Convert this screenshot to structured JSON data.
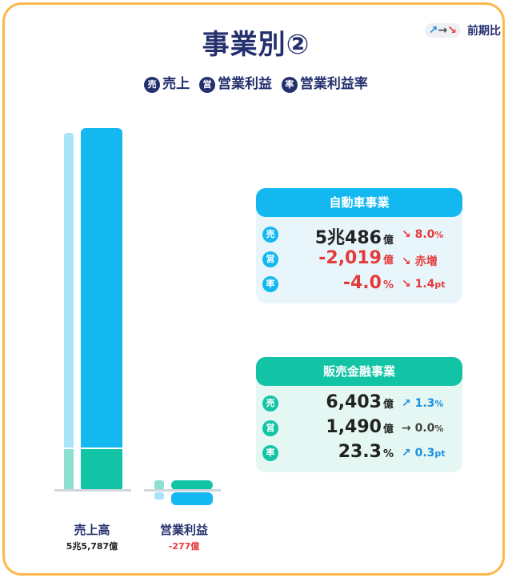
{
  "header": {
    "title": "事業別②",
    "legend": [
      {
        "chip": "売",
        "label": "売上"
      },
      {
        "chip": "営",
        "label": "営業利益"
      },
      {
        "chip": "率",
        "label": "営業利益率"
      }
    ],
    "prev_period": {
      "label": "前期比",
      "arrow_up": "↗",
      "arrow_flat": "→",
      "arrow_down": "↘"
    }
  },
  "chart_data": {
    "type": "bar",
    "categories": [
      "売上高",
      "営業利益"
    ],
    "category_values": [
      "5兆5,787億",
      "-277億"
    ],
    "series": [
      {
        "name": "自動車事業",
        "values": [
          50486,
          -2019
        ],
        "color": "#13b8f0"
      },
      {
        "name": "販売金融事業",
        "values": [
          6403,
          1490
        ],
        "color": "#12c4a5"
      }
    ],
    "totals": [
      55787,
      -277
    ],
    "units": "億円"
  },
  "cards": [
    {
      "name": "自動車事業",
      "head_color": "#13b8f0",
      "bg_color": "#e8f6fc",
      "rows": [
        {
          "badge": "売",
          "value": "5兆486",
          "unit": "億",
          "value_color": "dark",
          "arrow": "↘",
          "change": "8.0",
          "change_unit": "%",
          "change_color": "red"
        },
        {
          "badge": "営",
          "value": "-2,019",
          "unit": "億",
          "value_color": "red",
          "arrow": "↘",
          "change": "赤増",
          "change_unit": "",
          "change_color": "red"
        },
        {
          "badge": "率",
          "value": "-4.0",
          "unit": "%",
          "value_color": "red",
          "arrow": "↘",
          "change": "1.4",
          "change_unit": "pt",
          "change_color": "red"
        }
      ]
    },
    {
      "name": "販売金融事業",
      "head_color": "#12c4a5",
      "bg_color": "#e4f7f3",
      "rows": [
        {
          "badge": "売",
          "value": "6,403",
          "unit": "億",
          "value_color": "dark",
          "arrow": "↗",
          "change": "1.3",
          "change_unit": "%",
          "change_color": "blue"
        },
        {
          "badge": "営",
          "value": "1,490",
          "unit": "億",
          "value_color": "dark",
          "arrow": "→",
          "change": "0.0",
          "change_unit": "%",
          "change_color": "gray"
        },
        {
          "badge": "率",
          "value": "23.3",
          "unit": "%",
          "value_color": "dark",
          "arrow": "↗",
          "change": "0.3",
          "change_unit": "pt",
          "change_color": "blue"
        }
      ]
    }
  ]
}
